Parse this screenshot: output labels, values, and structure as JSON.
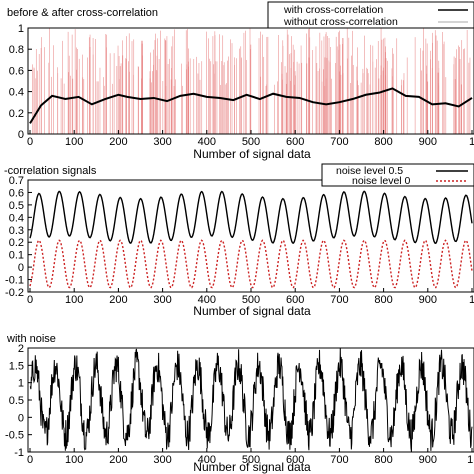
{
  "chart_data": [
    {
      "type": "line",
      "title": "before & after cross-correlation",
      "xlabel": "Number of signal data",
      "ylabel": "",
      "xlim": [
        0,
        1000
      ],
      "ylim": [
        0,
        1
      ],
      "xticks": [
        "0",
        "100",
        "200",
        "300",
        "400",
        "500",
        "600",
        "700",
        "800",
        "900",
        "1"
      ],
      "yticks": [
        "0",
        "0.2",
        "0.4",
        "0.6",
        "0.8",
        "1"
      ],
      "legend_position": "top-right",
      "series": [
        {
          "name": "with cross-correlation",
          "color": "#000000",
          "x": [
            0,
            25,
            50,
            80,
            110,
            140,
            170,
            200,
            220,
            250,
            280,
            310,
            340,
            370,
            400,
            430,
            460,
            490,
            520,
            550,
            580,
            610,
            640,
            670,
            700,
            730,
            760,
            790,
            820,
            850,
            880,
            910,
            940,
            970,
            1000
          ],
          "values": [
            0.1,
            0.27,
            0.36,
            0.33,
            0.35,
            0.28,
            0.33,
            0.37,
            0.35,
            0.33,
            0.34,
            0.31,
            0.36,
            0.38,
            0.35,
            0.34,
            0.32,
            0.37,
            0.33,
            0.38,
            0.35,
            0.34,
            0.3,
            0.28,
            0.3,
            0.33,
            0.37,
            0.39,
            0.43,
            0.36,
            0.35,
            0.28,
            0.29,
            0.26,
            0.34
          ]
        },
        {
          "name": "without cross-correlation",
          "color": "#e88080",
          "description_noise": "dense random vertical lines between 0 and 1 (one per sample)"
        }
      ]
    },
    {
      "type": "line",
      "title": "-correlation signals",
      "xlabel": "Number of signal data",
      "ylabel": "",
      "xlim": [
        0,
        1000
      ],
      "ylim": [
        -0.2,
        0.7
      ],
      "xticks": [
        "0",
        "100",
        "200",
        "300",
        "400",
        "500",
        "600",
        "700",
        "800",
        "900",
        "1"
      ],
      "yticks": [
        "-0.2",
        "-0.1",
        "0",
        "0.1",
        "0.2",
        "0.3",
        "0.4",
        "0.5",
        "0.6",
        "0.7"
      ],
      "legend_position": "top-right",
      "series": [
        {
          "name": "noise level 0.5",
          "color": "#000000",
          "style": "solid",
          "period": 46,
          "center": 0.4,
          "amplitude": 0.18
        },
        {
          "name": "noise level 0",
          "color": "#cc2222",
          "style": "dotted",
          "period": 46,
          "center": 0.025,
          "amplitude": 0.19
        }
      ]
    },
    {
      "type": "line",
      "title": "with noise",
      "xlabel": "Number of signal data",
      "ylabel": "",
      "xlim": [
        0,
        1000
      ],
      "ylim": [
        -1,
        2
      ],
      "xticks": [
        "0",
        "100",
        "200",
        "300",
        "400",
        "500",
        "600",
        "700",
        "800",
        "900",
        "1("
      ],
      "yticks": [
        "-1",
        "-0.5",
        "0",
        "0.5",
        "1",
        "1.5",
        "2"
      ],
      "series": [
        {
          "name": "",
          "color": "#000000",
          "period": 46,
          "center": 0.5,
          "amplitude": 1.0,
          "noise_amplitude": 0.5
        }
      ]
    }
  ]
}
